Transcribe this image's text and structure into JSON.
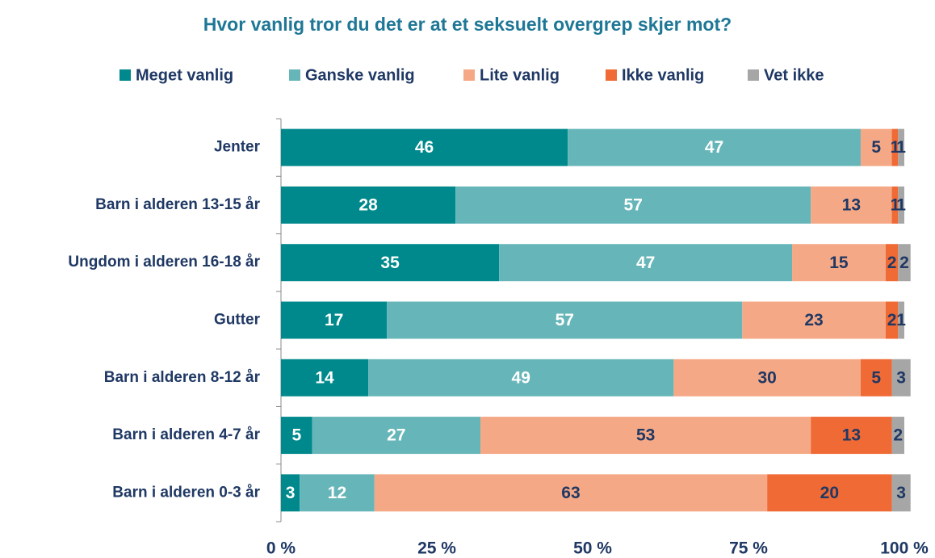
{
  "chart_data": {
    "type": "stacked-barh",
    "title": "Hvor vanlig tror du det er at et seksuelt overgrep skjer mot?",
    "categories": [
      "Jenter",
      "Barn i alderen 13-15 år",
      "Ungdom i alderen 16-18 år",
      "Gutter",
      "Barn i alderen 8-12 år",
      "Barn i alderen 4-7 år",
      "Barn i alderen 0-3 år"
    ],
    "series": [
      {
        "name": "Meget vanlig",
        "color": "#00898c",
        "values": [
          46,
          28,
          35,
          17,
          14,
          5,
          3
        ]
      },
      {
        "name": "Ganske vanlig",
        "color": "#66b6b9",
        "values": [
          47,
          57,
          47,
          57,
          49,
          27,
          12
        ]
      },
      {
        "name": "Lite vanlig",
        "color": "#f5a885",
        "values": [
          5,
          13,
          15,
          23,
          30,
          53,
          63
        ]
      },
      {
        "name": "Ikke vanlig",
        "color": "#ef6a35",
        "values": [
          1,
          1,
          2,
          2,
          5,
          13,
          20
        ]
      },
      {
        "name": "Vet ikke",
        "color": "#a6a6a6",
        "values": [
          1,
          1,
          2,
          1,
          3,
          2,
          3
        ]
      }
    ],
    "xlim": [
      0,
      100
    ],
    "xticks": [
      {
        "value": 0,
        "label": "0 %"
      },
      {
        "value": 25,
        "label": "25 %"
      },
      {
        "value": 50,
        "label": "50 %"
      },
      {
        "value": 75,
        "label": "75 %"
      },
      {
        "value": 100,
        "label": "100 %"
      }
    ],
    "legend": "top"
  }
}
